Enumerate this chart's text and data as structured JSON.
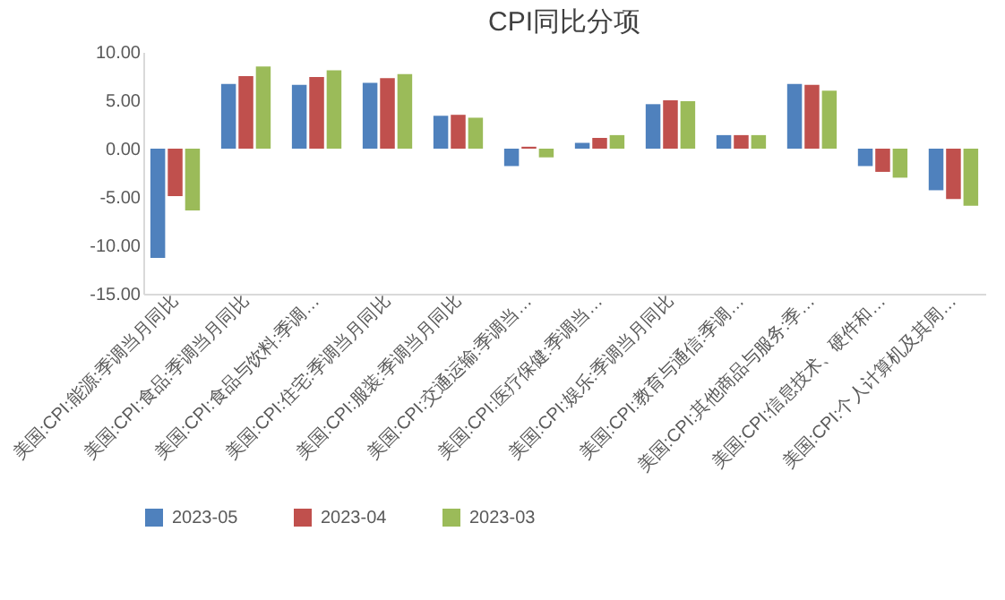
{
  "chart_data": {
    "type": "bar",
    "title": "CPI同比分项",
    "categories": [
      "美国:CPI:能源:季调当月同比",
      "美国:CPI:食品:季调当月同比",
      "美国:CPI:食品与饮料:季调…",
      "美国:CPI:住宅:季调当月同比",
      "美国:CPI:服装:季调当月同比",
      "美国:CPI:交通运输:季调当…",
      "美国:CPI:医疗保健:季调当…",
      "美国:CPI:娱乐:季调当月同比",
      "美国:CPI:教育与通信:季调…",
      "美国:CPI:其他商品与服务:季…",
      "美国:CPI:信息技术、硬件和…",
      "美国:CPI:个人计算机及其周…"
    ],
    "series": [
      {
        "name": "2023-05",
        "color": "#4f81bd",
        "values": [
          -11.3,
          6.7,
          6.6,
          6.8,
          3.4,
          -1.8,
          0.6,
          4.6,
          1.4,
          6.7,
          -1.8,
          -4.3
        ]
      },
      {
        "name": "2023-04",
        "color": "#c0504d",
        "values": [
          -4.9,
          7.5,
          7.4,
          7.3,
          3.5,
          0.2,
          1.1,
          5.0,
          1.4,
          6.6,
          -2.4,
          -5.2
        ]
      },
      {
        "name": "2023-03",
        "color": "#9bbb59",
        "values": [
          -6.4,
          8.5,
          8.1,
          7.7,
          3.2,
          -0.9,
          1.4,
          4.9,
          1.4,
          6.0,
          -3.0,
          -5.9
        ]
      }
    ],
    "ylim": [
      -15,
      10
    ],
    "yticks": [
      {
        "value": -15,
        "label": "-15.00"
      },
      {
        "value": -10,
        "label": "-10.00"
      },
      {
        "value": -5,
        "label": "-5.00"
      },
      {
        "value": 0,
        "label": "0.00"
      },
      {
        "value": 5,
        "label": "5.00"
      },
      {
        "value": 10,
        "label": "10.00"
      }
    ],
    "grid": false,
    "legend": "bottom"
  }
}
